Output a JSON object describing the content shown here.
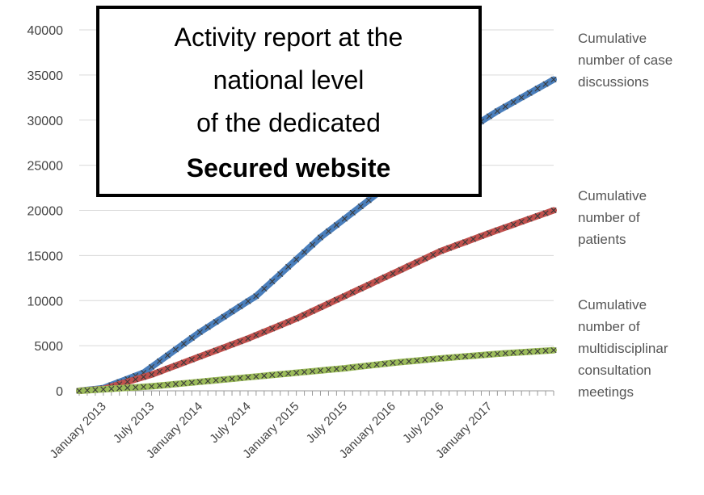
{
  "chart_data": {
    "type": "line",
    "title_box": {
      "lines": [
        "Activity report at the",
        "national level",
        "of the dedicated",
        "Secured website"
      ]
    },
    "y_axis": {
      "min": 0,
      "max": 40000,
      "ticks": [
        0,
        5000,
        10000,
        15000,
        20000,
        25000,
        30000,
        35000,
        40000
      ],
      "tick_labels": [
        "0",
        "5000",
        "10000",
        "15000",
        "20000",
        "25000",
        "30000",
        "35000",
        "40000"
      ]
    },
    "x_axis": {
      "num_points": 60,
      "tick_labels": [
        {
          "index": 3,
          "label": "January 2013"
        },
        {
          "index": 9,
          "label": "July 2013"
        },
        {
          "index": 15,
          "label": "January 2014"
        },
        {
          "index": 21,
          "label": "July 2014"
        },
        {
          "index": 27,
          "label": "January 2015"
        },
        {
          "index": 33,
          "label": "July 2015"
        },
        {
          "index": 39,
          "label": "January 2016"
        },
        {
          "index": 45,
          "label": "July 2016"
        },
        {
          "index": 51,
          "label": "January 2017"
        }
      ]
    },
    "grid": true,
    "series": [
      {
        "name": "Cumulative number of case discussions",
        "label_lines": [
          "Cumulative",
          "number of case",
          "discussions"
        ],
        "color": "#4a7ebb",
        "anchors": [
          [
            0,
            0
          ],
          [
            3,
            300
          ],
          [
            8,
            2000
          ],
          [
            15,
            6500
          ],
          [
            22,
            10500
          ],
          [
            30,
            17000
          ],
          [
            38,
            22500
          ],
          [
            45,
            27000
          ],
          [
            52,
            31000
          ],
          [
            59,
            34500
          ]
        ]
      },
      {
        "name": "Cumulative number of patients",
        "label_lines": [
          "Cumulative",
          "number of",
          "patients"
        ],
        "color": "#c0504d",
        "anchors": [
          [
            0,
            0
          ],
          [
            3,
            200
          ],
          [
            9,
            1800
          ],
          [
            15,
            3800
          ],
          [
            21,
            5800
          ],
          [
            27,
            8000
          ],
          [
            33,
            10500
          ],
          [
            39,
            13000
          ],
          [
            45,
            15500
          ],
          [
            52,
            17800
          ],
          [
            59,
            20000
          ]
        ]
      },
      {
        "name": "Cumulative number of multidisciplinar consultation meetings",
        "label_lines": [
          "Cumulative",
          "number of",
          "multidisciplinar",
          "consultation",
          "meetings"
        ],
        "color": "#9bbb59",
        "anchors": [
          [
            0,
            0
          ],
          [
            9,
            500
          ],
          [
            15,
            1000
          ],
          [
            21,
            1500
          ],
          [
            27,
            2000
          ],
          [
            33,
            2500
          ],
          [
            39,
            3100
          ],
          [
            45,
            3600
          ],
          [
            52,
            4100
          ],
          [
            59,
            4500
          ]
        ]
      }
    ]
  }
}
